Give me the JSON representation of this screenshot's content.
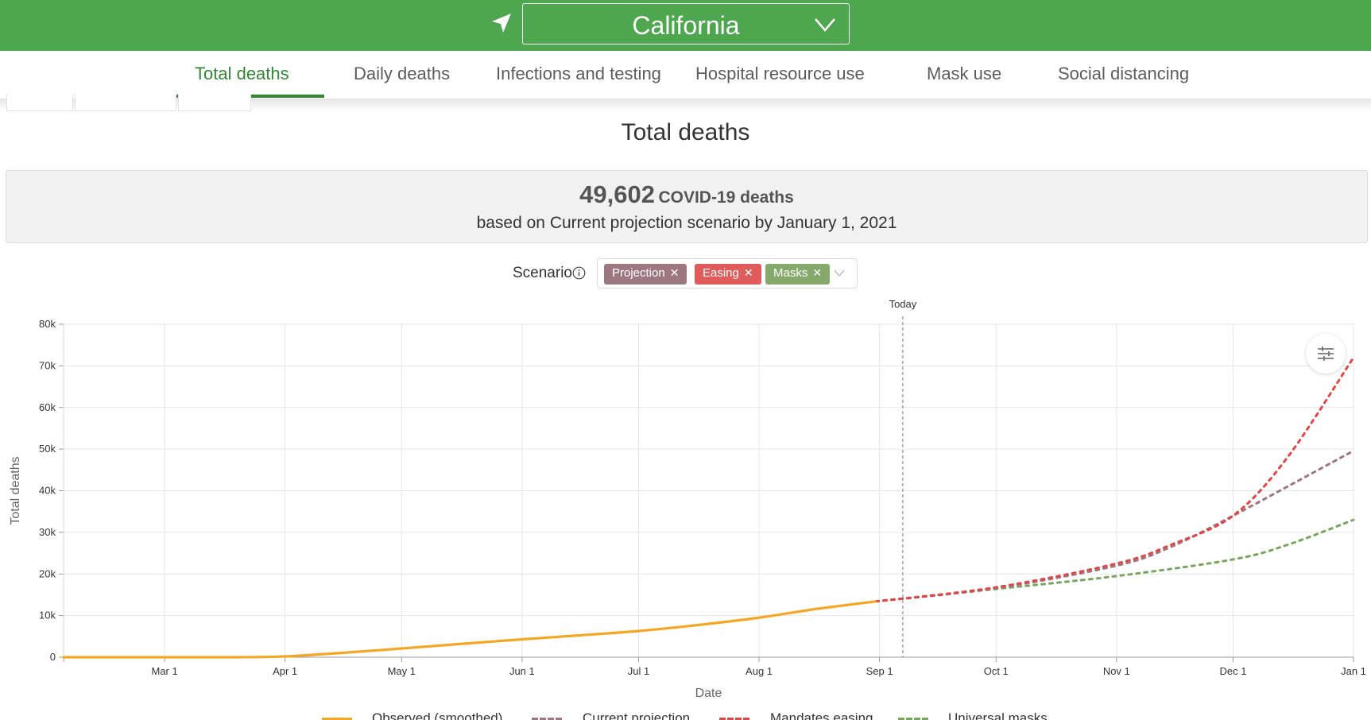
{
  "header": {
    "state": "California",
    "colors": {
      "bar": "#4ea64f",
      "text": "#ffffff"
    },
    "icons": {
      "location": "location-arrow-icon",
      "dropdown": "chevron-down-icon"
    }
  },
  "tabs": [
    {
      "label": "Total deaths",
      "active": true
    },
    {
      "label": "Daily deaths",
      "active": false
    },
    {
      "label": "Infections and testing",
      "active": false
    },
    {
      "label": "Hospital resource use",
      "active": false
    },
    {
      "label": "Mask use",
      "active": false
    },
    {
      "label": "Social distancing",
      "active": false
    }
  ],
  "page_title": "Total deaths",
  "summary": {
    "number": "49,602",
    "label": "COVID-19 deaths",
    "subtitle": "based on Current projection scenario by January 1, 2021"
  },
  "scenario": {
    "label": "Scenario",
    "chips": [
      {
        "label": "Projection",
        "color": "#9e7880"
      },
      {
        "label": "Easing",
        "color": "#e05b5b"
      },
      {
        "label": "Masks",
        "color": "#85a86b"
      }
    ]
  },
  "chart_data": {
    "type": "line",
    "x_axis_type": "date",
    "xlabel": "Date",
    "ylabel": "Total deaths",
    "xlim": [
      "2020-02-04",
      "2021-01-01"
    ],
    "ylim": [
      0,
      80000
    ],
    "y_ticks": [
      0,
      10000,
      20000,
      30000,
      40000,
      50000,
      60000,
      70000,
      80000
    ],
    "y_tick_labels": [
      "0",
      "10k",
      "20k",
      "30k",
      "40k",
      "50k",
      "60k",
      "70k",
      "80k"
    ],
    "x_ticks": [
      "2020-03-01",
      "2020-04-01",
      "2020-05-01",
      "2020-06-01",
      "2020-07-01",
      "2020-08-01",
      "2020-09-01",
      "2020-10-01",
      "2020-11-01",
      "2020-12-01",
      "2021-01-01"
    ],
    "x_tick_labels": [
      "Mar 1",
      "Apr 1",
      "May 1",
      "Jun 1",
      "Jul 1",
      "Aug 1",
      "Sep 1",
      "Oct 1",
      "Nov 1",
      "Dec 1",
      "Jan 1"
    ],
    "grid": true,
    "today_marker": {
      "label": "Today",
      "date": "2020-09-07"
    },
    "series": [
      {
        "name": "Observed (smoothed)",
        "color": "#f5a623",
        "dash": "solid",
        "points": [
          [
            "2020-02-04",
            0
          ],
          [
            "2020-03-01",
            0
          ],
          [
            "2020-03-20",
            0
          ],
          [
            "2020-04-01",
            200
          ],
          [
            "2020-04-15",
            1000
          ],
          [
            "2020-05-01",
            2100
          ],
          [
            "2020-05-15",
            3100
          ],
          [
            "2020-06-01",
            4300
          ],
          [
            "2020-06-15",
            5200
          ],
          [
            "2020-07-01",
            6300
          ],
          [
            "2020-07-15",
            7600
          ],
          [
            "2020-08-01",
            9500
          ],
          [
            "2020-08-15",
            11500
          ],
          [
            "2020-08-31",
            13400
          ]
        ]
      },
      {
        "name": "Current projection",
        "color": "#9e7880",
        "dash": "dotted",
        "points": [
          [
            "2020-08-31",
            13400
          ],
          [
            "2020-10-01",
            16600
          ],
          [
            "2020-11-01",
            22000
          ],
          [
            "2020-11-15",
            26500
          ],
          [
            "2020-12-01",
            34000
          ],
          [
            "2020-12-15",
            41000
          ],
          [
            "2021-01-01",
            49600
          ]
        ]
      },
      {
        "name": "Mandates easing",
        "color": "#e04848",
        "dash": "dotted",
        "points": [
          [
            "2020-08-31",
            13400
          ],
          [
            "2020-10-01",
            16800
          ],
          [
            "2020-11-01",
            22500
          ],
          [
            "2020-11-15",
            27000
          ],
          [
            "2020-12-01",
            34000
          ],
          [
            "2020-12-15",
            48000
          ],
          [
            "2021-01-01",
            72000
          ]
        ]
      },
      {
        "name": "Universal masks",
        "color": "#79a65c",
        "dash": "dotted",
        "points": [
          [
            "2020-08-31",
            13400
          ],
          [
            "2020-10-01",
            16400
          ],
          [
            "2020-11-01",
            19500
          ],
          [
            "2020-12-01",
            23500
          ],
          [
            "2020-12-15",
            27000
          ],
          [
            "2021-01-01",
            33000
          ]
        ]
      }
    ]
  }
}
